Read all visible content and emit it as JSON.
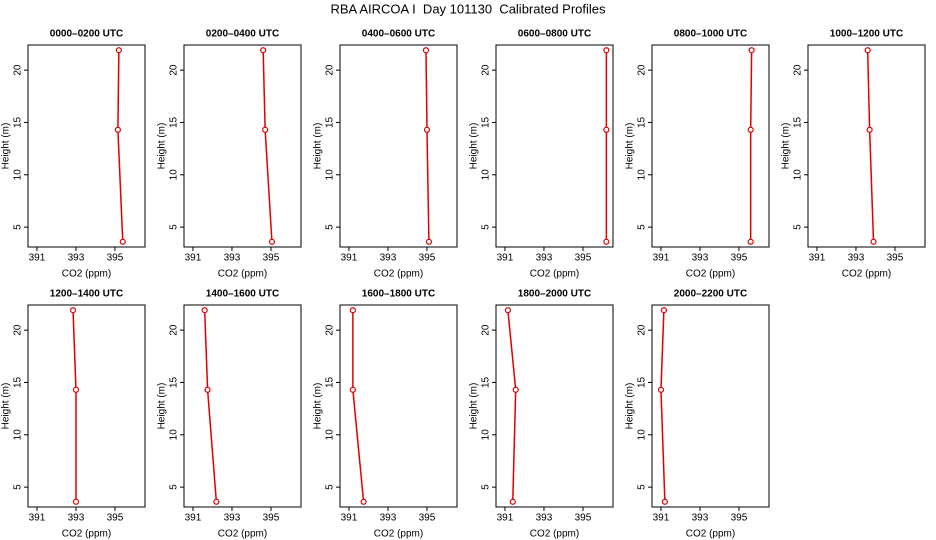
{
  "title": "RBA AIRCOA I  Day 101130  Calibrated Profiles",
  "chart_data": [
    {
      "type": "line",
      "title": "0000–0200 UTC",
      "xlabel": "CO2 (ppm)",
      "ylabel": "Height (m)",
      "color": "#e00000",
      "x": [
        395.2,
        395.15,
        395.4
      ],
      "y": [
        21.9,
        14.3,
        3.6
      ],
      "xlim": [
        390.54,
        396.54
      ],
      "ylim": [
        3.1,
        22.4
      ],
      "xticks": [
        391,
        393,
        395
      ],
      "yticks": [
        5,
        10,
        15,
        20
      ]
    },
    {
      "type": "line",
      "title": "0200–0400 UTC",
      "xlabel": "CO2 (ppm)",
      "ylabel": "Height (m)",
      "color": "#e00000",
      "x": [
        394.6,
        394.7,
        395.05
      ],
      "y": [
        21.9,
        14.3,
        3.6
      ],
      "xlim": [
        390.54,
        396.54
      ],
      "ylim": [
        3.1,
        22.4
      ],
      "xticks": [
        391,
        393,
        395
      ],
      "yticks": [
        5,
        10,
        15,
        20
      ]
    },
    {
      "type": "line",
      "title": "0400–0600 UTC",
      "xlabel": "CO2 (ppm)",
      "ylabel": "Height (m)",
      "color": "#e00000",
      "x": [
        394.95,
        395.0,
        395.1
      ],
      "y": [
        21.9,
        14.3,
        3.6
      ],
      "xlim": [
        390.54,
        396.54
      ],
      "ylim": [
        3.1,
        22.4
      ],
      "xticks": [
        391,
        393,
        395
      ],
      "yticks": [
        5,
        10,
        15,
        20
      ]
    },
    {
      "type": "line",
      "title": "0600–0800 UTC",
      "xlabel": "CO2 (ppm)",
      "ylabel": "Height (m)",
      "color": "#e00000",
      "x": [
        396.2,
        396.2,
        396.2
      ],
      "y": [
        21.9,
        14.3,
        3.6
      ],
      "xlim": [
        390.54,
        396.54
      ],
      "ylim": [
        3.1,
        22.4
      ],
      "xticks": [
        391,
        393,
        395
      ],
      "yticks": [
        5,
        10,
        15,
        20
      ]
    },
    {
      "type": "line",
      "title": "0800–1000 UTC",
      "xlabel": "CO2 (ppm)",
      "ylabel": "Height (m)",
      "color": "#e00000",
      "x": [
        395.65,
        395.6,
        395.6
      ],
      "y": [
        21.9,
        14.3,
        3.6
      ],
      "xlim": [
        390.54,
        396.54
      ],
      "ylim": [
        3.1,
        22.4
      ],
      "xticks": [
        391,
        393,
        395
      ],
      "yticks": [
        5,
        10,
        15,
        20
      ]
    },
    {
      "type": "line",
      "title": "1000–1200 UTC",
      "xlabel": "CO2 (ppm)",
      "ylabel": "Height (m)",
      "color": "#e00000",
      "x": [
        393.6,
        393.7,
        393.9
      ],
      "y": [
        21.9,
        14.3,
        3.6
      ],
      "xlim": [
        390.54,
        396.54
      ],
      "ylim": [
        3.1,
        22.4
      ],
      "xticks": [
        391,
        393,
        395
      ],
      "yticks": [
        5,
        10,
        15,
        20
      ]
    },
    {
      "type": "line",
      "title": "1200–1400 UTC",
      "xlabel": "CO2 (ppm)",
      "ylabel": "Height (m)",
      "color": "#e00000",
      "x": [
        392.85,
        393.0,
        393.0
      ],
      "y": [
        21.9,
        14.3,
        3.6
      ],
      "xlim": [
        390.54,
        396.54
      ],
      "ylim": [
        3.1,
        22.4
      ],
      "xticks": [
        391,
        393,
        395
      ],
      "yticks": [
        5,
        10,
        15,
        20
      ]
    },
    {
      "type": "line",
      "title": "1400–1600 UTC",
      "xlabel": "CO2 (ppm)",
      "ylabel": "Height (m)",
      "color": "#e00000",
      "x": [
        391.6,
        391.75,
        392.2
      ],
      "y": [
        21.9,
        14.3,
        3.6
      ],
      "xlim": [
        390.54,
        396.54
      ],
      "ylim": [
        3.1,
        22.4
      ],
      "xticks": [
        391,
        393,
        395
      ],
      "yticks": [
        5,
        10,
        15,
        20
      ]
    },
    {
      "type": "line",
      "title": "1600–1800 UTC",
      "xlabel": "CO2 (ppm)",
      "ylabel": "Height (m)",
      "color": "#e00000",
      "x": [
        391.2,
        391.2,
        391.75
      ],
      "y": [
        21.9,
        14.3,
        3.6
      ],
      "xlim": [
        390.54,
        396.54
      ],
      "ylim": [
        3.1,
        22.4
      ],
      "xticks": [
        391,
        393,
        395
      ],
      "yticks": [
        5,
        10,
        15,
        20
      ]
    },
    {
      "type": "line",
      "title": "1800–2000 UTC",
      "xlabel": "CO2 (ppm)",
      "ylabel": "Height (m)",
      "color": "#e00000",
      "x": [
        391.15,
        391.55,
        391.4
      ],
      "y": [
        21.9,
        14.3,
        3.6
      ],
      "xlim": [
        390.54,
        396.54
      ],
      "ylim": [
        3.1,
        22.4
      ],
      "xticks": [
        391,
        393,
        395
      ],
      "yticks": [
        5,
        10,
        15,
        20
      ]
    },
    {
      "type": "line",
      "title": "2000–2200 UTC",
      "xlabel": "CO2 (ppm)",
      "ylabel": "Height (m)",
      "color": "#e00000",
      "x": [
        391.15,
        391.0,
        391.2
      ],
      "y": [
        21.9,
        14.3,
        3.6
      ],
      "xlim": [
        390.54,
        396.54
      ],
      "ylim": [
        3.1,
        22.4
      ],
      "xticks": [
        391,
        393,
        395
      ],
      "yticks": [
        5,
        10,
        15,
        20
      ]
    }
  ]
}
